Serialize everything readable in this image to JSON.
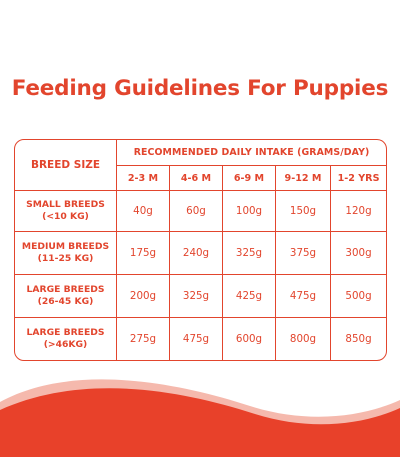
{
  "title": "Feeding Guidelines For Puppies",
  "table": {
    "breed_header": "BREED SIZE",
    "intake_header": "RECOMMENDED DAILY INTAKE (GRAMS/DAY)",
    "age_columns": [
      "2-3 M",
      "4-6 M",
      "6-9 M",
      "9-12 M",
      "1-2 YRS"
    ],
    "rows": [
      {
        "breed_line1": "SMALL BREEDS",
        "breed_line2": "(<10 KG)",
        "values": [
          "40g",
          "60g",
          "100g",
          "150g",
          "120g"
        ]
      },
      {
        "breed_line1": "MEDIUM BREEDS",
        "breed_line2": "(11-25 KG)",
        "values": [
          "175g",
          "240g",
          "325g",
          "375g",
          "300g"
        ]
      },
      {
        "breed_line1": "LARGE BREEDS",
        "breed_line2": "(26-45 KG)",
        "values": [
          "200g",
          "325g",
          "425g",
          "475g",
          "500g"
        ]
      },
      {
        "breed_line1": "LARGE BREEDS",
        "breed_line2": "(>46KG)",
        "values": [
          "275g",
          "475g",
          "600g",
          "800g",
          "850g"
        ]
      }
    ]
  },
  "colors": {
    "accent": "#e2452d",
    "wave_front": "#e8412a",
    "wave_back": "#f5b9ad"
  }
}
